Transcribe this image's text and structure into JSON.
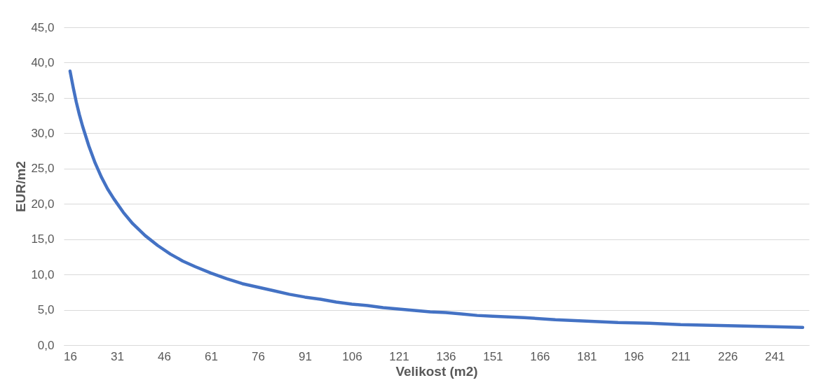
{
  "chart_data": {
    "type": "line",
    "xlabel": "Velikost (m2)",
    "ylabel": "EUR/m2",
    "x": [
      16,
      17,
      18,
      19,
      20,
      22,
      24,
      26,
      28,
      30,
      33,
      36,
      40,
      44,
      48,
      52,
      56,
      61,
      66,
      71,
      76,
      81,
      86,
      91,
      96,
      101,
      106,
      111,
      116,
      121,
      126,
      131,
      136,
      141,
      146,
      151,
      161,
      171,
      181,
      191,
      201,
      211,
      221,
      231,
      241,
      250
    ],
    "series": [
      {
        "color": "#4472c4",
        "values": [
          38.8,
          36.5,
          34.4,
          32.6,
          31.0,
          28.2,
          25.8,
          23.8,
          22.1,
          20.7,
          18.8,
          17.2,
          15.5,
          14.1,
          12.9,
          11.9,
          11.1,
          10.2,
          9.4,
          8.7,
          8.2,
          7.7,
          7.2,
          6.8,
          6.5,
          6.1,
          5.8,
          5.6,
          5.3,
          5.1,
          4.9,
          4.7,
          4.6,
          4.4,
          4.2,
          4.1,
          3.9,
          3.6,
          3.4,
          3.2,
          3.1,
          2.9,
          2.8,
          2.7,
          2.6,
          2.5
        ]
      }
    ],
    "xlim": [
      14,
      252
    ],
    "xticks": [
      16,
      31,
      46,
      61,
      76,
      91,
      106,
      121,
      136,
      151,
      166,
      181,
      196,
      211,
      226,
      241
    ],
    "ylim": [
      0,
      45
    ],
    "yticks": [
      {
        "value": 0,
        "label": "0,0"
      },
      {
        "value": 5,
        "label": "5,0"
      },
      {
        "value": 10,
        "label": "10,0"
      },
      {
        "value": 15,
        "label": "15,0"
      },
      {
        "value": 20,
        "label": "20,0"
      },
      {
        "value": 25,
        "label": "25,0"
      },
      {
        "value": 30,
        "label": "30,0"
      },
      {
        "value": 35,
        "label": "35,0"
      },
      {
        "value": 40,
        "label": "40,0"
      },
      {
        "value": 45,
        "label": "45,0"
      }
    ],
    "grid": "y",
    "legend": false,
    "marker": "none",
    "line_style": "solid"
  }
}
